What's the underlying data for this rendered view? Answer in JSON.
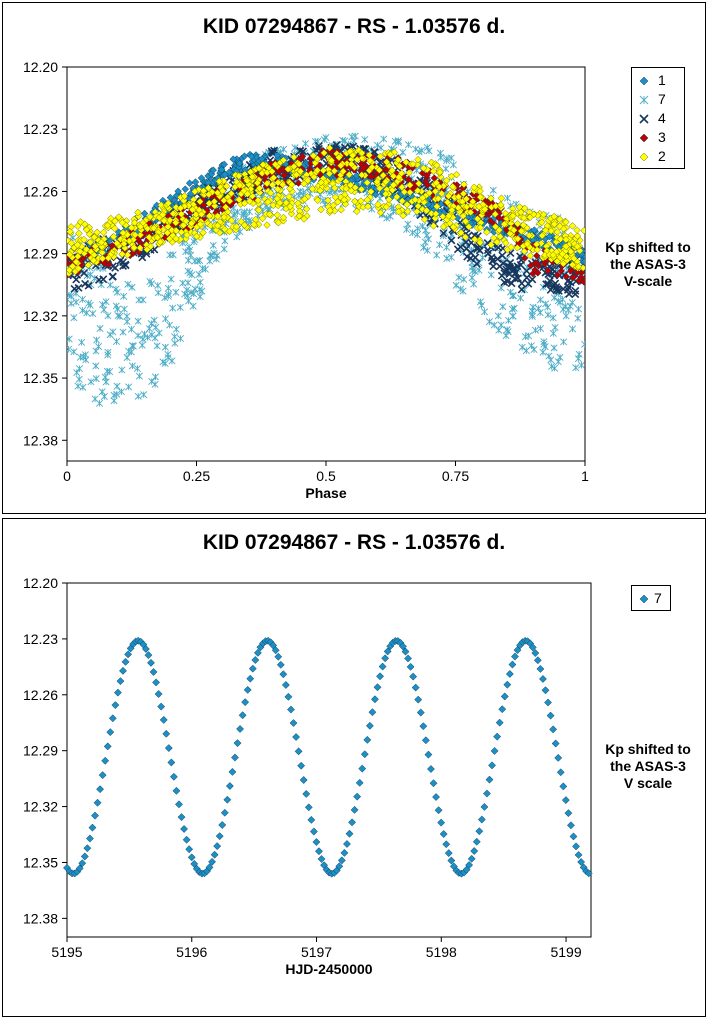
{
  "charts": [
    {
      "title": "KID 07294867  - RS - 1.03576 d.",
      "side_label": [
        "Kp shifted to",
        "the ASAS-3",
        "V-scale"
      ],
      "legend": [
        "1",
        "7",
        "4",
        "3",
        "2"
      ]
    },
    {
      "title": "KID 07294867  - RS - 1.03576 d.",
      "side_label": [
        "Kp shifted to",
        "the ASAS-3",
        "V scale"
      ],
      "legend": [
        "7"
      ]
    }
  ],
  "chart_data": [
    {
      "type": "scatter",
      "title": "KID 07294867  - RS - 1.03576 d.",
      "xlabel": "Phase",
      "ylabel": "Kp shifted to the ASAS-3 V-scale",
      "xlim": [
        0,
        1
      ],
      "ylim": [
        12.2,
        12.39
      ],
      "y_inverted": true,
      "x_ticks": [
        "0",
        "0.25",
        "0.5",
        "0.75",
        "1"
      ],
      "y_ticks": [
        "12.20",
        "12.23",
        "12.26",
        "12.29",
        "12.32",
        "12.35",
        "12.38"
      ],
      "grid": false,
      "legend_position": "top-right",
      "series": [
        {
          "name": "1",
          "color": "#1e8fc4",
          "marker": "diamond",
          "x": [
            0.0,
            0.1,
            0.2,
            0.25,
            0.3,
            0.35,
            0.4,
            0.5,
            0.6,
            0.7,
            0.8,
            0.9,
            1.0
          ],
          "y": [
            12.293,
            12.283,
            12.265,
            12.258,
            12.25,
            12.246,
            12.246,
            12.252,
            12.258,
            12.266,
            12.274,
            12.282,
            12.291
          ]
        },
        {
          "name": "7",
          "color": "#4bacc6",
          "marker": "asterisk",
          "x": [
            0.0,
            0.05,
            0.1,
            0.15,
            0.2,
            0.25,
            0.3,
            0.35,
            0.4,
            0.45,
            0.5,
            0.55,
            0.6,
            0.65,
            0.7,
            0.75,
            0.8,
            0.85,
            0.9,
            0.95,
            1.0
          ],
          "y_min": [
            12.275,
            12.29,
            12.3,
            12.305,
            12.29,
            12.268,
            12.255,
            12.245,
            12.24,
            12.236,
            12.234,
            12.232,
            12.232,
            12.234,
            12.238,
            12.245,
            12.255,
            12.263,
            12.268,
            12.27,
            12.272
          ],
          "y_max": [
            12.352,
            12.362,
            12.365,
            12.36,
            12.345,
            12.315,
            12.29,
            12.278,
            12.272,
            12.27,
            12.27,
            12.27,
            12.272,
            12.278,
            12.29,
            12.305,
            12.32,
            12.333,
            12.34,
            12.347,
            12.35
          ]
        },
        {
          "name": "4",
          "color": "#17375e",
          "marker": "x-box",
          "x": [
            0.0,
            0.1,
            0.2,
            0.3,
            0.4,
            0.5,
            0.6,
            0.65,
            0.7,
            0.75,
            0.8,
            0.85,
            0.9,
            0.95,
            1.0
          ],
          "y_min": [
            12.29,
            12.28,
            12.268,
            12.252,
            12.24,
            12.236,
            12.24,
            12.246,
            12.255,
            12.265,
            12.278,
            12.288,
            12.292,
            12.292,
            12.29
          ],
          "y_max": [
            12.31,
            12.3,
            12.283,
            12.268,
            12.258,
            12.252,
            12.256,
            12.265,
            12.275,
            12.287,
            12.298,
            12.306,
            12.31,
            12.31,
            12.31
          ]
        },
        {
          "name": "3",
          "color": "#c00000",
          "marker": "diamond",
          "x": [
            0.0,
            0.1,
            0.2,
            0.3,
            0.4,
            0.5,
            0.6,
            0.7,
            0.8,
            0.85,
            0.9,
            1.0
          ],
          "y_min": [
            12.29,
            12.282,
            12.27,
            12.258,
            12.246,
            12.24,
            12.24,
            12.25,
            12.262,
            12.27,
            12.285,
            12.3
          ],
          "y_max": [
            12.302,
            12.294,
            12.282,
            12.27,
            12.26,
            12.252,
            12.254,
            12.264,
            12.272,
            12.28,
            12.3,
            12.304
          ]
        },
        {
          "name": "2",
          "color": "#ffff00",
          "marker": "diamond",
          "x": [
            0.0,
            0.1,
            0.2,
            0.3,
            0.4,
            0.5,
            0.6,
            0.7,
            0.8,
            0.9,
            1.0
          ],
          "y_min": [
            12.275,
            12.272,
            12.265,
            12.254,
            12.245,
            12.238,
            12.238,
            12.245,
            12.258,
            12.27,
            12.274
          ],
          "y_max": [
            12.3,
            12.292,
            12.285,
            12.28,
            12.276,
            12.272,
            12.27,
            12.276,
            12.285,
            12.292,
            12.298
          ]
        }
      ]
    },
    {
      "type": "scatter",
      "title": "KID 07294867  - RS - 1.03576 d.",
      "xlabel": "HJD-2450000",
      "ylabel": "Kp shifted to the ASAS-3 V scale",
      "xlim": [
        5195,
        5199.2
      ],
      "ylim": [
        12.2,
        12.39
      ],
      "y_inverted": true,
      "x_ticks": [
        "5195",
        "5196",
        "5197",
        "5198",
        "5199"
      ],
      "y_ticks": [
        "12.20",
        "12.23",
        "12.26",
        "12.29",
        "12.32",
        "12.35",
        "12.38"
      ],
      "grid": false,
      "legend_position": "top-right",
      "series": [
        {
          "name": "7",
          "color": "#1e8fc4",
          "marker": "diamond",
          "period": 1.03576,
          "t_max": 5195.57,
          "mag_bright": 12.231,
          "mag_faint": 12.356,
          "x_start": 5195.0,
          "x_end": 5199.2,
          "cadence": 0.0204
        }
      ]
    }
  ]
}
